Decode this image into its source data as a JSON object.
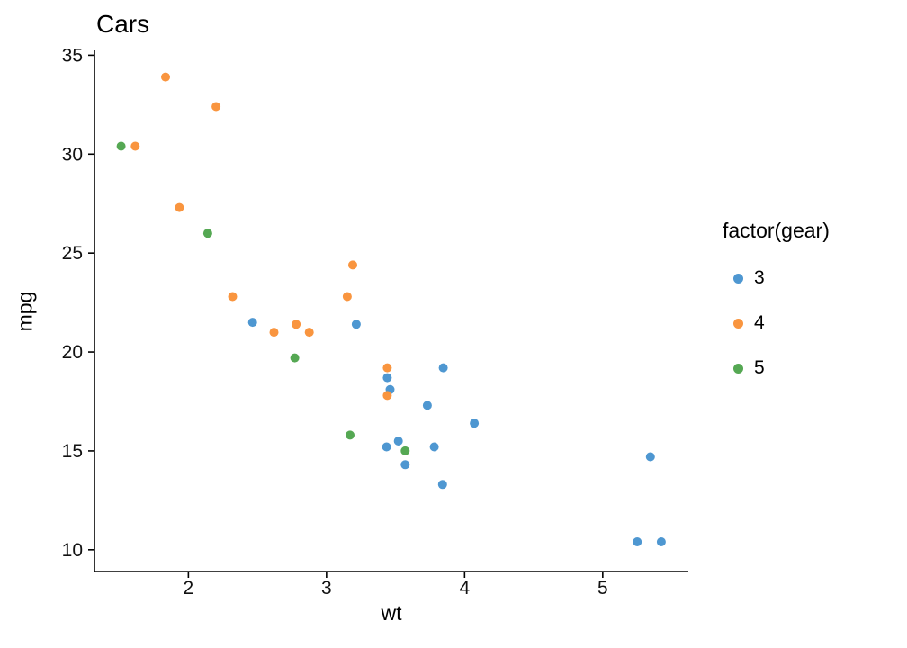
{
  "chart_data": {
    "type": "scatter",
    "title": "Cars",
    "xlabel": "wt",
    "ylabel": "mpg",
    "xlim": [
      1.32,
      5.62
    ],
    "ylim": [
      8.9,
      35.2
    ],
    "xticks": [
      2,
      3,
      4,
      5
    ],
    "yticks": [
      10,
      15,
      20,
      25,
      30,
      35
    ],
    "grid": false,
    "background": "#ffffff",
    "axis_color": "#000000",
    "point_radius": 5,
    "legend_title": "factor(gear)",
    "legend_position": "right",
    "series": [
      {
        "name": "3",
        "color": "#4E97D1",
        "points": [
          [
            3.215,
            21.4
          ],
          [
            3.44,
            18.7
          ],
          [
            3.46,
            18.1
          ],
          [
            3.57,
            14.3
          ],
          [
            4.07,
            16.4
          ],
          [
            3.73,
            17.3
          ],
          [
            3.78,
            15.2
          ],
          [
            5.25,
            10.4
          ],
          [
            5.424,
            10.4
          ],
          [
            5.345,
            14.7
          ],
          [
            2.465,
            21.5
          ],
          [
            3.52,
            15.5
          ],
          [
            3.435,
            15.2
          ],
          [
            3.84,
            13.3
          ],
          [
            3.845,
            19.2
          ]
        ]
      },
      {
        "name": "4",
        "color": "#F9953F",
        "points": [
          [
            2.62,
            21.0
          ],
          [
            2.875,
            21.0
          ],
          [
            2.32,
            22.8
          ],
          [
            3.19,
            24.4
          ],
          [
            3.15,
            22.8
          ],
          [
            3.44,
            19.2
          ],
          [
            3.44,
            17.8
          ],
          [
            2.2,
            32.4
          ],
          [
            1.615,
            30.4
          ],
          [
            1.835,
            33.9
          ],
          [
            1.935,
            27.3
          ],
          [
            2.78,
            21.4
          ]
        ]
      },
      {
        "name": "5",
        "color": "#55A853",
        "points": [
          [
            2.14,
            26.0
          ],
          [
            1.513,
            30.4
          ],
          [
            3.17,
            15.8
          ],
          [
            2.77,
            19.7
          ],
          [
            3.57,
            15.0
          ]
        ]
      }
    ]
  }
}
